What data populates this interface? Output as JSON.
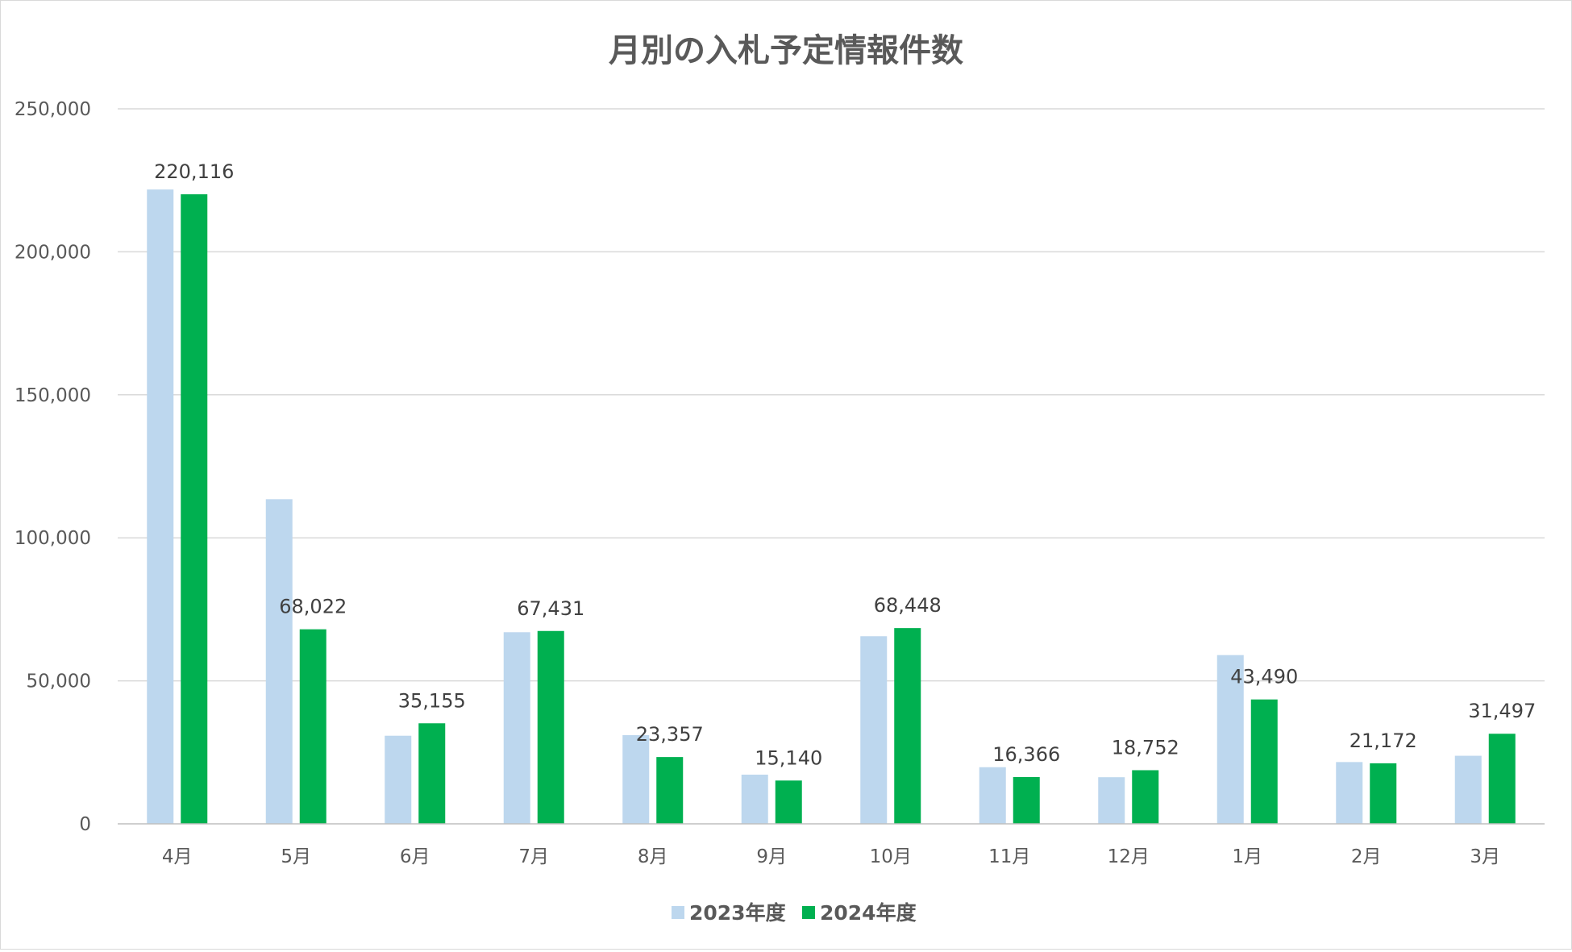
{
  "chart_data": {
    "type": "bar",
    "title": "月別の入札予定情報件数",
    "xlabel": "",
    "ylabel": "",
    "categories": [
      "4月",
      "5月",
      "6月",
      "7月",
      "8月",
      "9月",
      "10月",
      "11月",
      "12月",
      "1月",
      "2月",
      "3月"
    ],
    "ylim": [
      0,
      250000
    ],
    "yticks": [
      0,
      50000,
      100000,
      150000,
      200000,
      250000
    ],
    "ytick_labels": [
      "0",
      "50,000",
      "100,000",
      "150,000",
      "200,000",
      "250,000"
    ],
    "grid": true,
    "legend_position": "bottom",
    "series": [
      {
        "name": "2023年度",
        "color": "#bdd7ee",
        "values": [
          221800,
          113500,
          30800,
          67000,
          31000,
          17200,
          65600,
          19800,
          16300,
          59000,
          21600,
          23800
        ],
        "data_labels": null
      },
      {
        "name": "2024年度",
        "color": "#00b050",
        "values": [
          220116,
          68022,
          35155,
          67431,
          23357,
          15140,
          68448,
          16366,
          18752,
          43490,
          21172,
          31497
        ],
        "data_labels": [
          "220,116",
          "68,022",
          "35,155",
          "67,431",
          "23,357",
          "15,140",
          "68,448",
          "16,366",
          "18,752",
          "43,490",
          "21,172",
          "31,497"
        ]
      }
    ]
  }
}
